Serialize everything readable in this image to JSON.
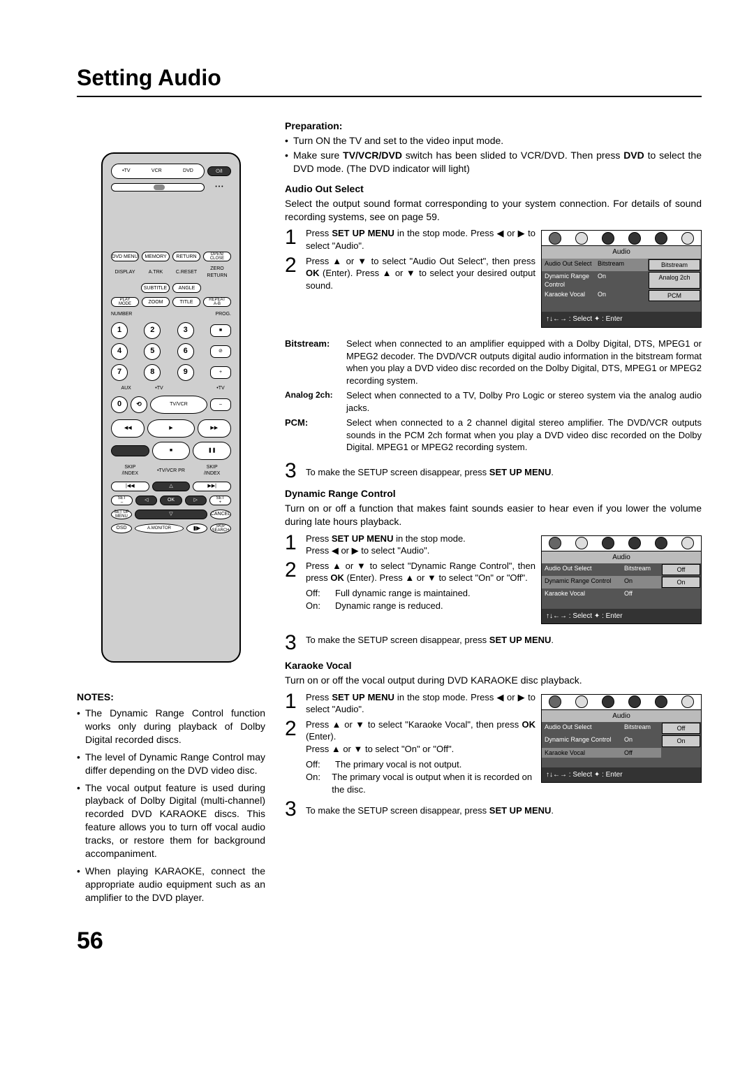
{
  "page": {
    "title": "Setting Audio",
    "number": "56"
  },
  "preparation": {
    "heading": "Preparation:",
    "items": [
      "Turn ON the TV and set to the video input mode.",
      "Make sure <b>TV/VCR/DVD</b> switch has been slided to VCR/DVD. Then press <b>DVD</b> to select the DVD mode. (The DVD indicator will light)"
    ]
  },
  "sections": [
    {
      "heading": "Audio Out Select",
      "intro": "Select the output sound format corresponding to your system connection. For details of sound recording systems, see on page 59.",
      "menu": {
        "tabs": [
          "Audio"
        ],
        "rows": [
          [
            "Audio Out Select",
            "Bitstream",
            "Bitstream"
          ],
          [
            "Dynamic Range Control",
            "On",
            "Analog 2ch"
          ],
          [
            "Karaoke Vocal",
            "On",
            "PCM"
          ]
        ],
        "footer": "↑↓←→ : Select  ✦ : Enter",
        "highlight_col": 1
      },
      "steps": [
        "Press <b>SET UP MENU</b> in the stop mode. Press ◀ or ▶ to select \"Audio\".",
        "Press ▲ or ▼ to select \"Audio Out Select\", then press <b>OK</b> (Enter). Press ▲ or ▼ to select your desired output sound."
      ],
      "defs": [
        {
          "term": "Bitstream:",
          "small": false,
          "body": "Select when connected to an amplifier equipped with a Dolby Digital, DTS, MPEG1 or MPEG2 decoder. The DVD/VCR outputs digital audio information in the bitstream format when you play a DVD video disc recorded on the Dolby Digital, DTS, MPEG1 or MPEG2 recording system."
        },
        {
          "term": "Analog 2ch:",
          "small": true,
          "body": "Select when connected to a TV, Dolby Pro Logic or stereo system via the analog audio jacks."
        },
        {
          "term": "PCM:",
          "small": false,
          "body": "Select when connected to a 2 channel digital stereo amplifier. The DVD/VCR outputs sounds in the PCM 2ch format when you play a DVD video disc recorded on the Dolby Digital. MPEG1 or MPEG2 recording system."
        }
      ],
      "close_step": "To make the SETUP screen disappear, press <b>SET UP MENU</b>."
    },
    {
      "heading": "Dynamic Range Control",
      "intro": "Turn on or off a function that makes faint sounds easier to hear even if you lower the volume during late hours playback.",
      "menu": {
        "tabs": [
          "Audio"
        ],
        "rows": [
          [
            "Audio Out Select",
            "Bitstream",
            "Off"
          ],
          [
            "Dynamic Range Control",
            "On",
            "On"
          ],
          [
            "Karaoke Vocal",
            "Off",
            ""
          ]
        ],
        "footer": "↑↓←→ : Select  ✦ : Enter",
        "highlight_col": 2
      },
      "steps": [
        "Press <b>SET UP MENU</b> in the stop mode.<br>Press ◀ or ▶ to select \"Audio\".",
        "Press ▲ or ▼ to select \"Dynamic Range Control\", then press <b>OK</b> (Enter). Press ▲ or ▼ to select \"On\" or \"Off\"."
      ],
      "onoff": [
        {
          "t": "Off:",
          "d": "Full dynamic range is maintained."
        },
        {
          "t": "On:",
          "d": "Dynamic range is reduced."
        }
      ],
      "close_step": "To make the SETUP screen disappear, press <b>SET UP MENU</b>."
    },
    {
      "heading": "Karaoke Vocal",
      "intro": "Turn on or off the vocal output during DVD KARAOKE disc playback.",
      "menu": {
        "tabs": [
          "Audio"
        ],
        "rows": [
          [
            "Audio Out Select",
            "Bitstream",
            "Off"
          ],
          [
            "Dynamic Range Control",
            "On",
            "On"
          ],
          [
            "Karaoke Vocal",
            "Off",
            ""
          ]
        ],
        "footer": "↑↓←→ : Select  ✦ : Enter",
        "highlight_col": 2
      },
      "steps": [
        "Press <b>SET UP MENU</b> in the stop mode. Press ◀ or ▶ to select \"Audio\".",
        "Press ▲ or ▼ to select \"Karaoke Vocal\", then press <b>OK</b> (Enter).<br>Press ▲ or ▼ to select \"On\" or \"Off\"."
      ],
      "onoff": [
        {
          "t": "Off:",
          "d": "The primary vocal is not output."
        },
        {
          "t": "On:",
          "d": "The primary vocal is output when it is recorded on the disc."
        }
      ],
      "close_step": "To make the SETUP screen disappear, press <b>SET UP MENU</b>."
    }
  ],
  "notes": {
    "heading": "NOTES:",
    "items": [
      "The Dynamic Range Control function works only during playback of Dolby Digital recorded discs.",
      "The level of Dynamic Range Control may differ depending on the DVD video disc.",
      "The vocal output feature is used during playback of Dolby Digital (multi-channel) recorded DVD KARAOKE discs. This feature allows you to turn off vocal audio tracks, or restore them for background accompaniment.",
      "When playing KARAOKE, connect the appropriate audio equipment such as an amplifier to the DVD player."
    ]
  },
  "remote": {
    "row1_labels": [
      "•TV",
      "VCR",
      "DVD"
    ],
    "row2_labels": [
      "DVD MENU",
      "MEMORY",
      "RETURN",
      "OPEN/\nCLOSE"
    ],
    "row3_labels": [
      "DISPLAY",
      "A.TRK",
      "C.RESET",
      "ZERO RETURN"
    ],
    "row4_labels": [
      "SUBTITLE",
      "ANGLE"
    ],
    "row5_labels": [
      "PLAY\nMODE",
      "ZOOM",
      "TITLE",
      "REPEAT\nA-B"
    ],
    "number_label": "NUMBER",
    "prog_label": "PROG.",
    "numbers": [
      "1",
      "2",
      "3",
      "4",
      "5",
      "6",
      "7",
      "8",
      "9",
      "0"
    ],
    "aux_label": "AUX",
    "tv_labels": [
      "•TV",
      "•TV"
    ],
    "tvvcr_label": "TV/VCR",
    "skip_index_label": "SKIP\n/INDEX",
    "tvvcr_pr_label": "•TV/VCR PR",
    "set_labels": [
      "SET\n–",
      "SET\n+"
    ],
    "ok_label": "OK",
    "setup_menu_label": "SET UP\nMENU",
    "cancel_label": "CANCEL",
    "osd_label": "OSD",
    "amonitor_label": "A.MONITOR",
    "slow_label": "SLOW",
    "skip_search_label": "SKIP\nSEARCH"
  }
}
